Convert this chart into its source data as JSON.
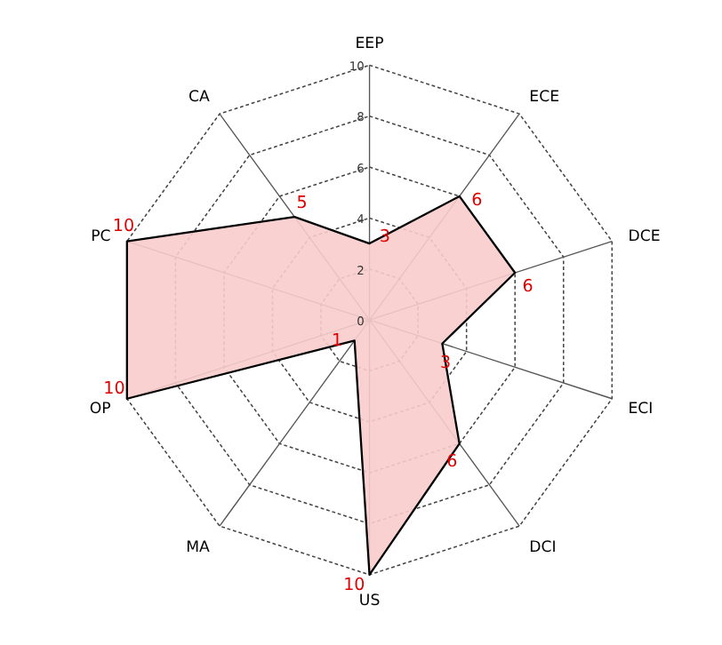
{
  "chart_data": {
    "type": "radar",
    "categories": [
      "EEP",
      "ECE",
      "DCE",
      "ECI",
      "DCI",
      "US",
      "MA",
      "OP",
      "PC",
      "CA"
    ],
    "series": [
      {
        "color": "#f9cccc",
        "values": [
          3,
          6,
          6,
          3,
          6,
          10,
          1,
          10,
          10,
          5
        ]
      }
    ],
    "ylim": [
      0,
      10
    ],
    "yticks": [
      0,
      2,
      4,
      6,
      8,
      10
    ],
    "grid": true,
    "data_labels": true
  }
}
